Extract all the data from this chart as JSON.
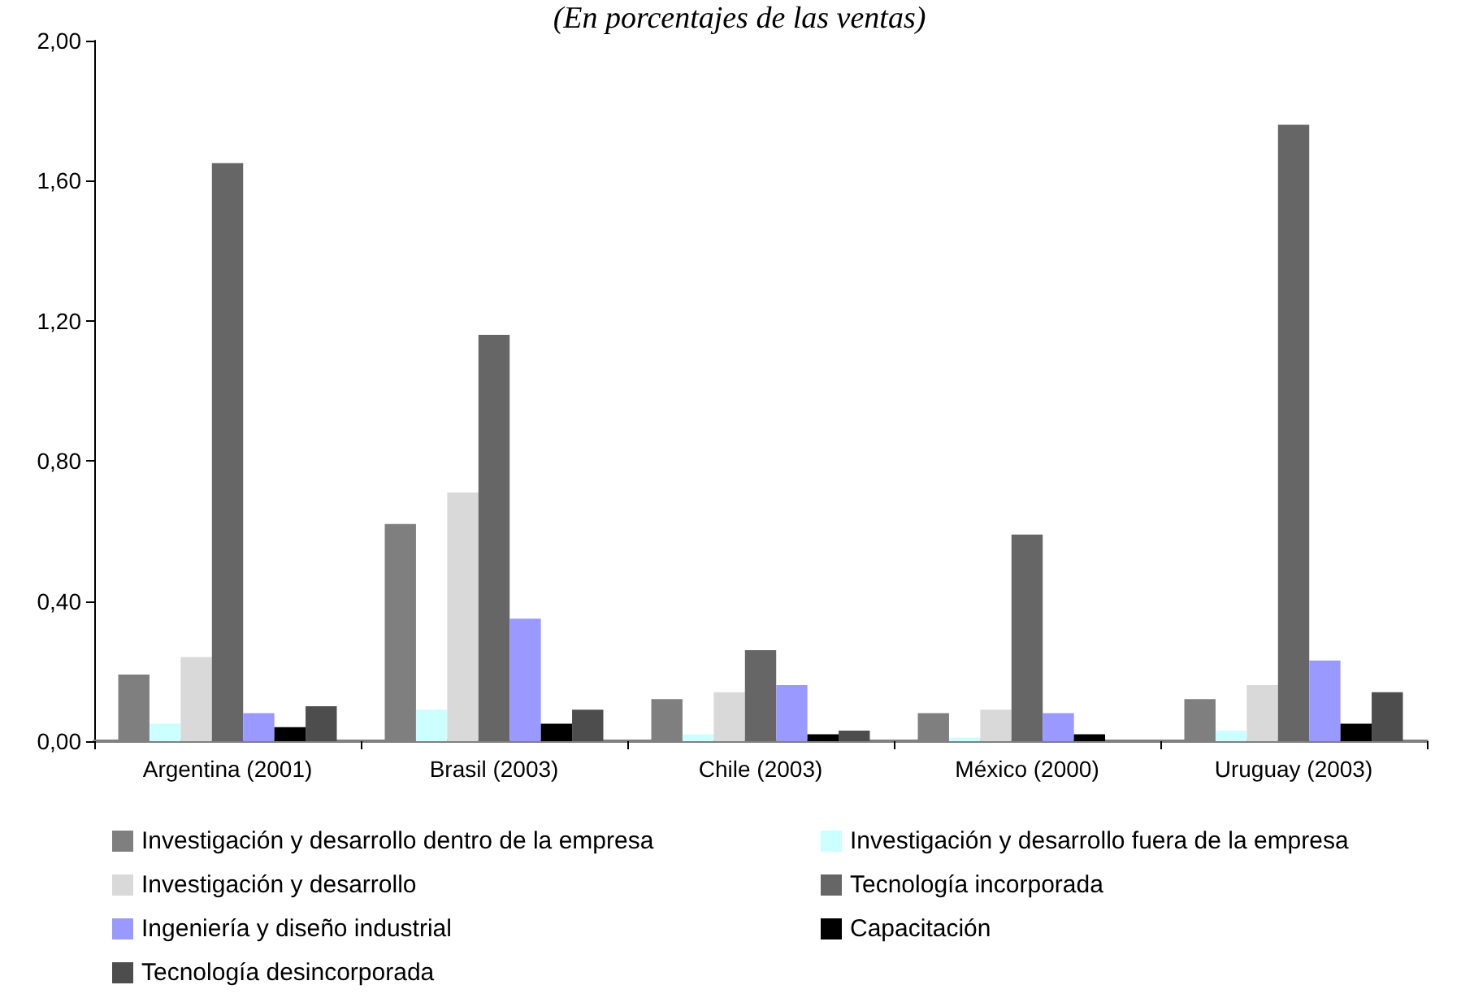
{
  "chart_data": {
    "type": "bar",
    "title": "(En porcentajes de las ventas)",
    "categories": [
      "Argentina (2001)",
      "Brasil (2003)",
      "Chile (2003)",
      "México (2000)",
      "Uruguay (2003)"
    ],
    "series": [
      {
        "name": "Investigación y desarrollo dentro de la empresa",
        "color": "#7f7f7f",
        "values": [
          0.19,
          0.62,
          0.12,
          0.08,
          0.12
        ]
      },
      {
        "name": "Investigación y desarrollo fuera de la empresa",
        "color": "#ccffff",
        "values": [
          0.05,
          0.09,
          0.02,
          0.01,
          0.03
        ]
      },
      {
        "name": "Investigación y desarrollo",
        "color": "#d9d9d9",
        "values": [
          0.24,
          0.71,
          0.14,
          0.09,
          0.16
        ]
      },
      {
        "name": "Tecnología incorporada",
        "color": "#666666",
        "values": [
          1.65,
          1.16,
          0.26,
          0.59,
          1.76
        ]
      },
      {
        "name": "Ingeniería y diseño industrial",
        "color": "#9999ff",
        "values": [
          0.08,
          0.35,
          0.16,
          0.08,
          0.23
        ]
      },
      {
        "name": "Capacitación",
        "color": "#000000",
        "values": [
          0.04,
          0.05,
          0.02,
          0.02,
          0.05
        ]
      },
      {
        "name": "Tecnología desincorporada",
        "color": "#4d4d4d",
        "values": [
          0.1,
          0.09,
          0.03,
          null,
          0.14
        ]
      }
    ],
    "ylim": [
      0,
      2
    ],
    "yticks": [
      {
        "value": 0,
        "label": "0,00"
      },
      {
        "value": 0.4,
        "label": "0,40"
      },
      {
        "value": 0.8,
        "label": "0,80"
      },
      {
        "value": 1.2,
        "label": "1,20"
      },
      {
        "value": 1.6,
        "label": "1,60"
      },
      {
        "value": 2,
        "label": "2,00"
      }
    ],
    "grid": false,
    "legend": "bottom"
  }
}
